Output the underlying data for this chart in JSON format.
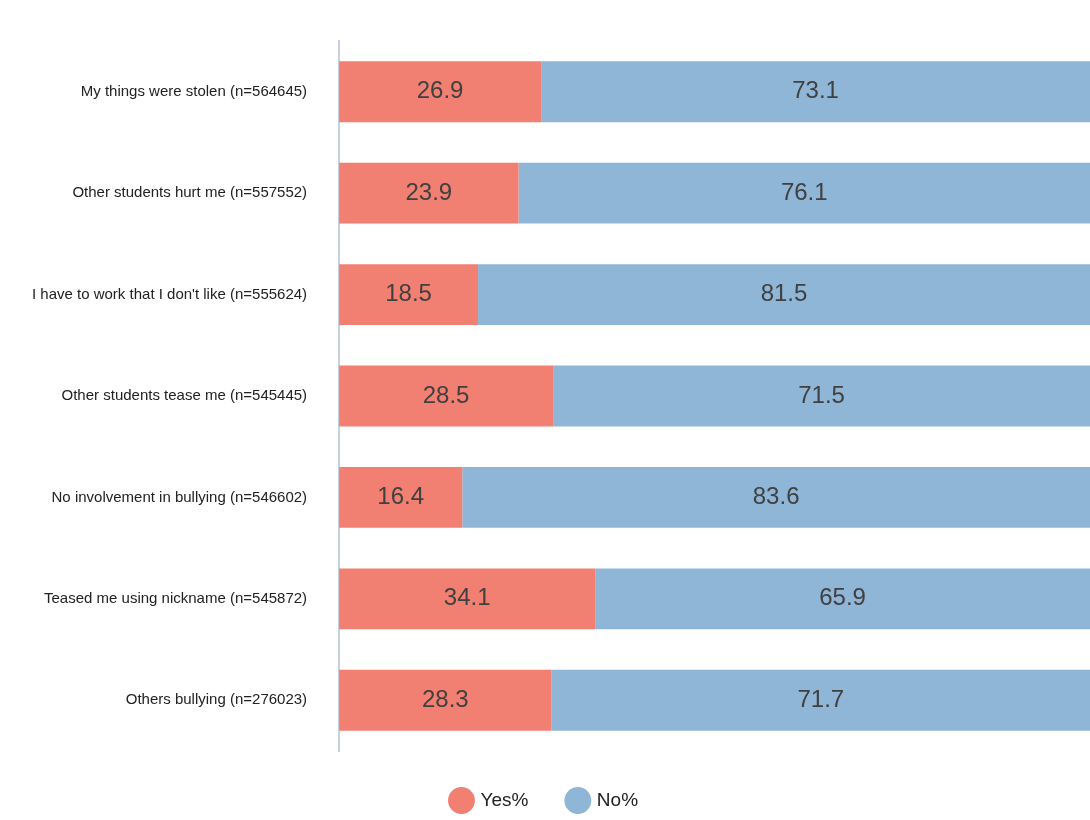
{
  "chart_data": {
    "type": "bar",
    "orientation": "horizontal",
    "stacked": true,
    "data_labels": true,
    "grid": false,
    "legend": "bottom",
    "categories": [
      "My things were stolen (n=564645)",
      "Other students hurt me (n=557552)",
      "I have to work that I don't like (n=555624)",
      "Other students tease me (n=545445)",
      "No involvement in bullying (n=546602)",
      "Teased me using nickname (n=545872)",
      "Others bullying (n=276023)"
    ],
    "series": [
      {
        "name": "Yes%",
        "color": "#f17f72",
        "values": [
          26.9,
          23.9,
          18.5,
          28.5,
          16.4,
          34.1,
          28.3
        ]
      },
      {
        "name": "No%",
        "color": "#8fb5d7",
        "values": [
          73.1,
          76.1,
          81.5,
          71.5,
          83.6,
          65.9,
          71.7
        ]
      }
    ]
  }
}
